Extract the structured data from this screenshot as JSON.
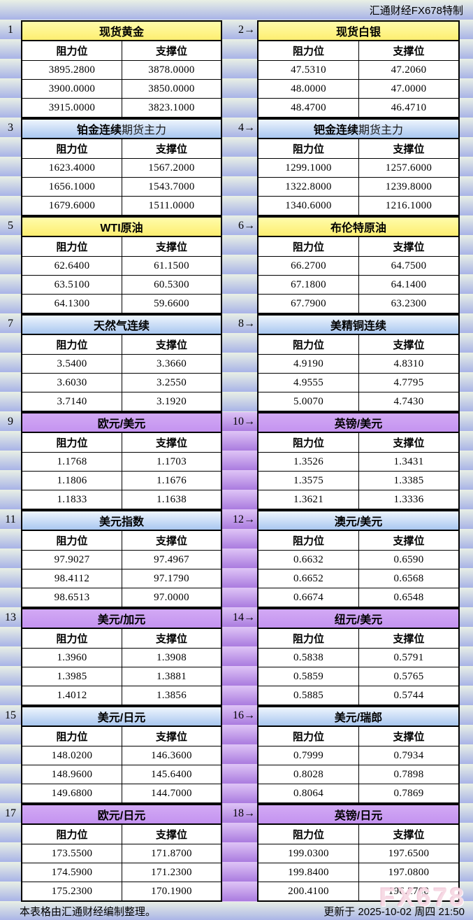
{
  "brand": "汇通财经FX678特制",
  "column_labels": {
    "resistance": "阻力位",
    "support": "支撑位"
  },
  "footer": {
    "note": "本表格由汇通财经编制整理。",
    "updated": "更新于 2025-10-02 周四 21:50"
  },
  "watermark": "FX678",
  "arrow_icon": "→",
  "colors": {
    "yellow_header": "#fdee70",
    "blue_header": "#a9c7f0",
    "purple_header": "#c493f0",
    "stripe_light": "#e9f0e5",
    "stripe_dark": "#a8b3e7",
    "purple_stripe_light": "#dfc5f6",
    "purple_stripe_dark": "#aa7bdf"
  },
  "tables": [
    {
      "num": "1",
      "title": "现货黄金",
      "title_suffix": "",
      "style": "yellow",
      "rows": [
        [
          "3895.2800",
          "3878.0000"
        ],
        [
          "3900.0000",
          "3850.0000"
        ],
        [
          "3915.0000",
          "3823.1000"
        ]
      ]
    },
    {
      "num": "2",
      "title": "现货白银",
      "title_suffix": "",
      "style": "yellow",
      "rows": [
        [
          "47.5310",
          "47.2060"
        ],
        [
          "48.0000",
          "47.0000"
        ],
        [
          "48.4700",
          "46.4710"
        ]
      ]
    },
    {
      "num": "3",
      "title": "铂金连续",
      "title_suffix": "期货主力",
      "style": "blue",
      "rows": [
        [
          "1623.4000",
          "1567.2000"
        ],
        [
          "1656.1000",
          "1543.7000"
        ],
        [
          "1679.6000",
          "1511.0000"
        ]
      ]
    },
    {
      "num": "4",
      "title": "钯金连续",
      "title_suffix": "期货主力",
      "style": "blue",
      "rows": [
        [
          "1299.1000",
          "1257.6000"
        ],
        [
          "1322.8000",
          "1239.8000"
        ],
        [
          "1340.6000",
          "1216.1000"
        ]
      ]
    },
    {
      "num": "5",
      "title": "WTI原油",
      "title_suffix": "",
      "style": "yellow",
      "rows": [
        [
          "62.6400",
          "61.1500"
        ],
        [
          "63.5100",
          "60.5300"
        ],
        [
          "64.1300",
          "59.6600"
        ]
      ]
    },
    {
      "num": "6",
      "title": "布伦特原油",
      "title_suffix": "",
      "style": "yellow",
      "rows": [
        [
          "66.2700",
          "64.7500"
        ],
        [
          "67.1800",
          "64.1400"
        ],
        [
          "67.7900",
          "63.2300"
        ]
      ]
    },
    {
      "num": "7",
      "title": "天然气连续",
      "title_suffix": "",
      "style": "blue",
      "rows": [
        [
          "3.5400",
          "3.3660"
        ],
        [
          "3.6030",
          "3.2550"
        ],
        [
          "3.7140",
          "3.1920"
        ]
      ]
    },
    {
      "num": "8",
      "title": "美精铜连续",
      "title_suffix": "",
      "style": "blue",
      "rows": [
        [
          "4.9190",
          "4.8310"
        ],
        [
          "4.9555",
          "4.7795"
        ],
        [
          "5.0070",
          "4.7430"
        ]
      ]
    },
    {
      "num": "9",
      "title": "欧元/美元",
      "title_suffix": "",
      "style": "purple",
      "rows": [
        [
          "1.1768",
          "1.1703"
        ],
        [
          "1.1806",
          "1.1676"
        ],
        [
          "1.1833",
          "1.1638"
        ]
      ]
    },
    {
      "num": "10",
      "title": "英镑/美元",
      "title_suffix": "",
      "style": "purple",
      "rows": [
        [
          "1.3526",
          "1.3431"
        ],
        [
          "1.3575",
          "1.3385"
        ],
        [
          "1.3621",
          "1.3336"
        ]
      ]
    },
    {
      "num": "11",
      "title": "美元指数",
      "title_suffix": "",
      "style": "blue",
      "rows": [
        [
          "97.9027",
          "97.4967"
        ],
        [
          "98.4112",
          "97.1790"
        ],
        [
          "98.6513",
          "97.0000"
        ]
      ]
    },
    {
      "num": "12",
      "title": "澳元/美元",
      "title_suffix": "",
      "style": "blue",
      "rows": [
        [
          "0.6632",
          "0.6590"
        ],
        [
          "0.6652",
          "0.6568"
        ],
        [
          "0.6674",
          "0.6548"
        ]
      ]
    },
    {
      "num": "13",
      "title": "美元/加元",
      "title_suffix": "",
      "style": "purple",
      "rows": [
        [
          "1.3960",
          "1.3908"
        ],
        [
          "1.3985",
          "1.3881"
        ],
        [
          "1.4012",
          "1.3856"
        ]
      ]
    },
    {
      "num": "14",
      "title": "纽元/美元",
      "title_suffix": "",
      "style": "purple",
      "rows": [
        [
          "0.5838",
          "0.5791"
        ],
        [
          "0.5859",
          "0.5765"
        ],
        [
          "0.5885",
          "0.5744"
        ]
      ]
    },
    {
      "num": "15",
      "title": "美元/日元",
      "title_suffix": "",
      "style": "blue",
      "rows": [
        [
          "148.0200",
          "146.3600"
        ],
        [
          "148.9600",
          "145.6400"
        ],
        [
          "149.6800",
          "144.7000"
        ]
      ]
    },
    {
      "num": "16",
      "title": "美元/瑞郎",
      "title_suffix": "",
      "style": "blue",
      "rows": [
        [
          "0.7999",
          "0.7934"
        ],
        [
          "0.8028",
          "0.7898"
        ],
        [
          "0.8064",
          "0.7869"
        ]
      ]
    },
    {
      "num": "17",
      "title": "欧元/日元",
      "title_suffix": "",
      "style": "purple",
      "rows": [
        [
          "173.5500",
          "171.8700"
        ],
        [
          "174.5900",
          "171.2300"
        ],
        [
          "175.2300",
          "170.1900"
        ]
      ]
    },
    {
      "num": "18",
      "title": "英镑/日元",
      "title_suffix": "",
      "style": "purple",
      "rows": [
        [
          "199.0300",
          "197.6500"
        ],
        [
          "199.8400",
          "197.0800"
        ],
        [
          "200.4100",
          "196.2700"
        ]
      ]
    }
  ]
}
